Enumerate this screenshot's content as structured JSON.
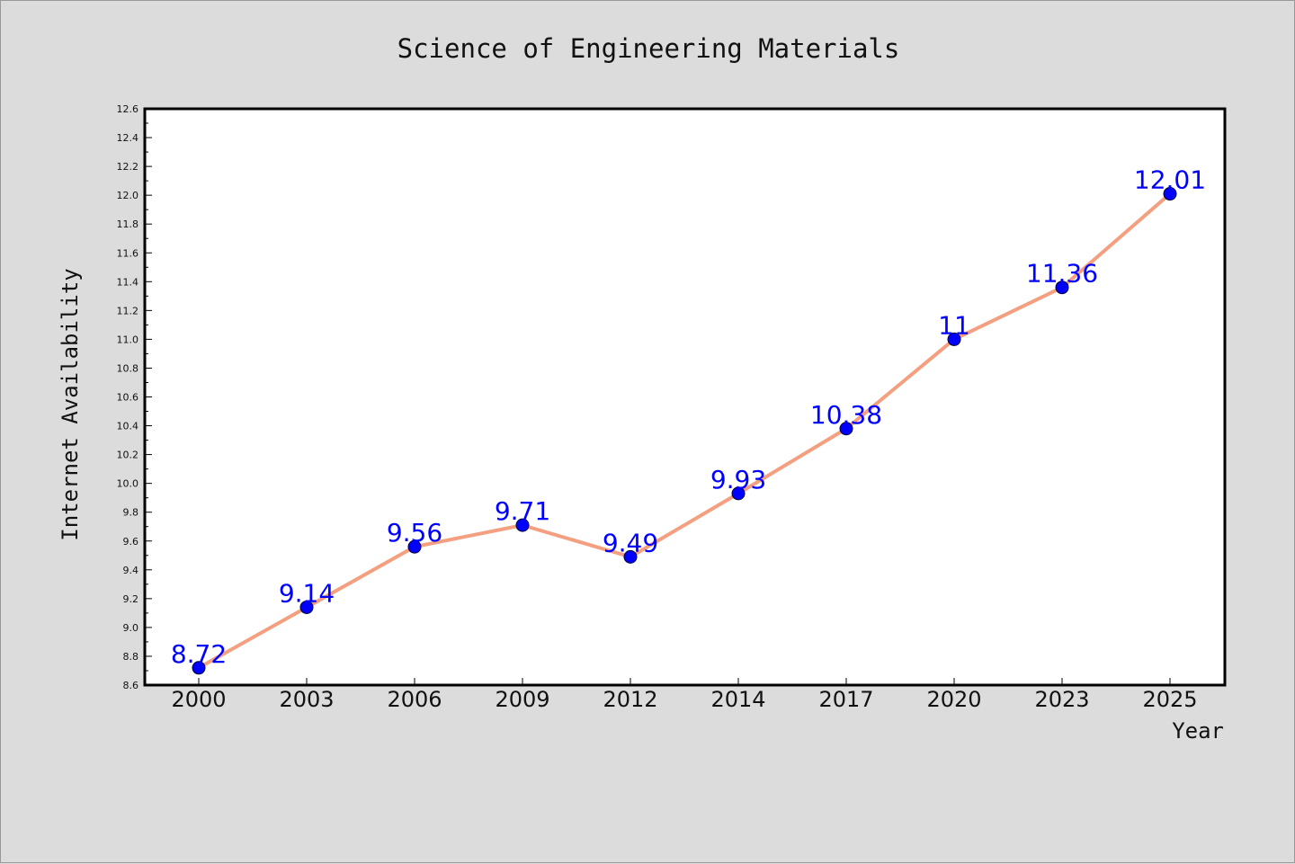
{
  "chart_data": {
    "type": "line",
    "title": "Science of Engineering Materials",
    "xlabel": "Year",
    "ylabel": "Internet Availability",
    "categories": [
      "2000",
      "2003",
      "2006",
      "2009",
      "2012",
      "2014",
      "2017",
      "2020",
      "2023",
      "2025"
    ],
    "series": [
      {
        "values": [
          8.72,
          9.14,
          9.56,
          9.71,
          9.49,
          9.93,
          10.38,
          11.0,
          11.36,
          12.01
        ],
        "labels": [
          "8.72",
          "9.14",
          "9.56",
          "9.71",
          "9.49",
          "9.93",
          "10.38",
          "11",
          "11.36",
          "12.01"
        ]
      }
    ],
    "ylim": [
      8.6,
      12.6
    ],
    "yticks": [
      "8.6",
      "8.8",
      "9.0",
      "9.2",
      "9.4",
      "9.6",
      "9.8",
      "10.0",
      "10.2",
      "10.4",
      "10.6",
      "10.8",
      "11.0",
      "11.2",
      "11.4",
      "11.6",
      "11.8",
      "12.0",
      "12.2",
      "12.4",
      "12.6"
    ],
    "grid": false,
    "legend": "none",
    "colors": {
      "line": "#f4a080",
      "marker_fill": "#0000ff",
      "marker_edge": "#000033",
      "data_label": "#0000ff",
      "plot_background": "#ffffff",
      "figure_background": "#dcdcdc"
    }
  }
}
